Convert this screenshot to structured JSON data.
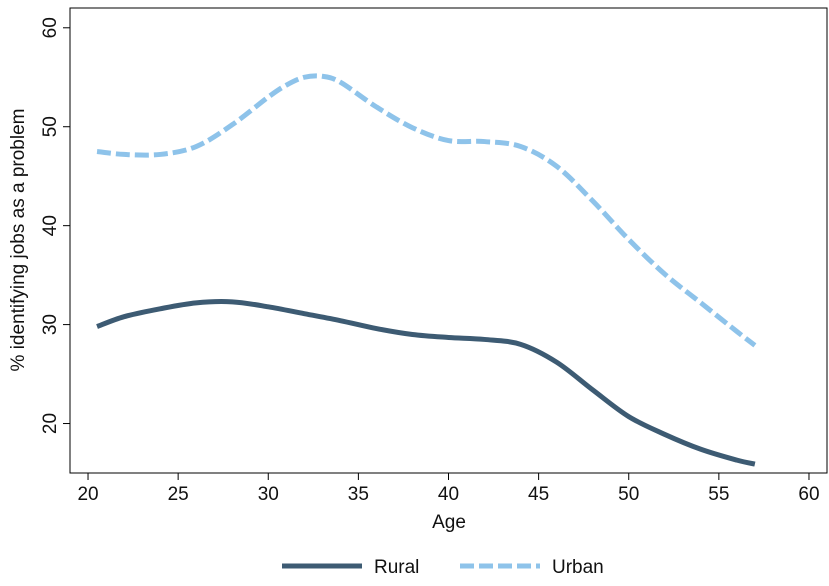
{
  "chart_data": {
    "type": "line",
    "title": "",
    "xlabel": "Age",
    "ylabel": "% identifying jobs as a problem",
    "xlim": [
      19,
      61
    ],
    "ylim": [
      15,
      62
    ],
    "x_ticks": [
      20,
      25,
      30,
      35,
      40,
      45,
      50,
      55,
      60
    ],
    "y_ticks": [
      20,
      30,
      40,
      50,
      60
    ],
    "x_tick_labels": [
      "20",
      "25",
      "30",
      "35",
      "40",
      "45",
      "50",
      "55",
      "60"
    ],
    "y_tick_labels": [
      "20",
      "30",
      "40",
      "50",
      "60"
    ],
    "grid": false,
    "legend_position": "bottom",
    "series": [
      {
        "name": "Rural",
        "color": "#3d5b73",
        "style": "solid",
        "x": [
          20.5,
          22,
          24,
          26,
          28,
          30,
          32,
          34,
          36,
          38,
          40,
          42,
          44,
          46,
          48,
          50,
          52,
          54,
          56,
          57
        ],
        "y": [
          29.8,
          30.8,
          31.6,
          32.2,
          32.3,
          31.8,
          31.1,
          30.4,
          29.6,
          29.0,
          28.7,
          28.5,
          28.0,
          26.2,
          23.4,
          20.7,
          18.9,
          17.4,
          16.3,
          15.9
        ]
      },
      {
        "name": "Urban",
        "color": "#8ec3ea",
        "style": "dashed",
        "x": [
          20.5,
          22,
          24,
          26,
          28,
          30,
          31,
          32,
          33,
          34,
          36,
          38,
          40,
          42,
          44,
          46,
          48,
          50,
          52,
          54,
          56,
          57
        ],
        "y": [
          47.5,
          47.2,
          47.2,
          48.0,
          50.2,
          53.0,
          54.2,
          55.0,
          55.1,
          54.5,
          52.0,
          49.9,
          48.6,
          48.5,
          48.0,
          46.0,
          42.5,
          38.6,
          35.1,
          32.2,
          29.3,
          27.9
        ]
      }
    ]
  }
}
